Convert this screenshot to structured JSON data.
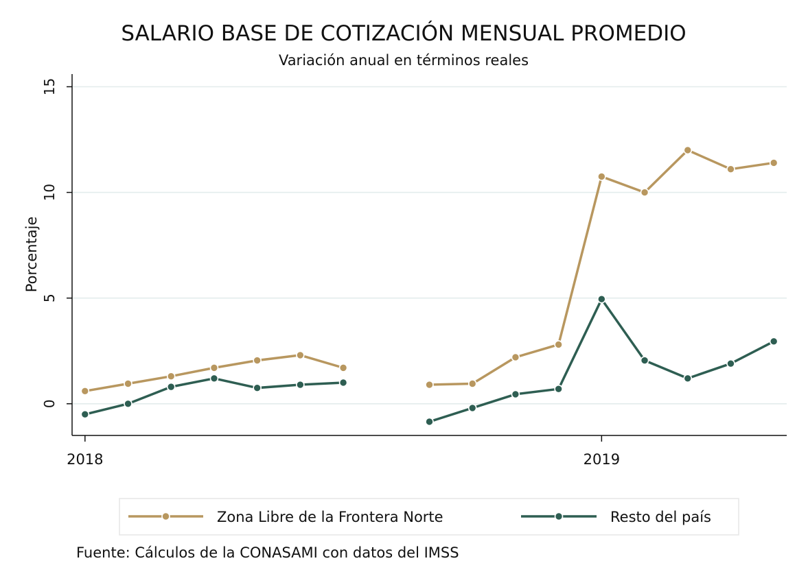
{
  "chart_data": {
    "type": "line",
    "title": "SALARIO BASE DE COTIZACIÓN MENSUAL PROMEDIO",
    "subtitle": "Variación anual en términos reales",
    "xlabel": "",
    "ylabel": "Porcentaje",
    "ylim": [
      -1.5,
      15.6
    ],
    "yticks": [
      0,
      5,
      10,
      15
    ],
    "ytick_labels": [
      "0",
      "5",
      "10",
      "15"
    ],
    "x": [
      1,
      2,
      3,
      4,
      5,
      6,
      7,
      8,
      9,
      10,
      11,
      12,
      13,
      14,
      15,
      16,
      17
    ],
    "xlim": [
      0.7,
      17.3
    ],
    "xticks": [
      1,
      13
    ],
    "xtick_labels": [
      "2018",
      "2019"
    ],
    "grid": true,
    "legend_position": "bottom",
    "series": [
      {
        "name": "Zona Libre de la Frontera Norte",
        "color": "#b8975f",
        "values": [
          0.6,
          0.95,
          1.3,
          1.7,
          2.05,
          2.3,
          1.7,
          null,
          0.9,
          0.95,
          2.2,
          2.8,
          10.75,
          10.0,
          12.0,
          11.1,
          11.4
        ]
      },
      {
        "name": "Resto del país",
        "color": "#2e5e52",
        "values": [
          -0.5,
          0.0,
          0.8,
          1.2,
          0.75,
          0.9,
          1.0,
          null,
          -0.85,
          -0.2,
          0.45,
          0.7,
          4.95,
          2.05,
          1.2,
          1.9,
          2.95
        ]
      }
    ],
    "source": "Fuente: Cálculos de la CONASAMI con datos del IMSS"
  }
}
